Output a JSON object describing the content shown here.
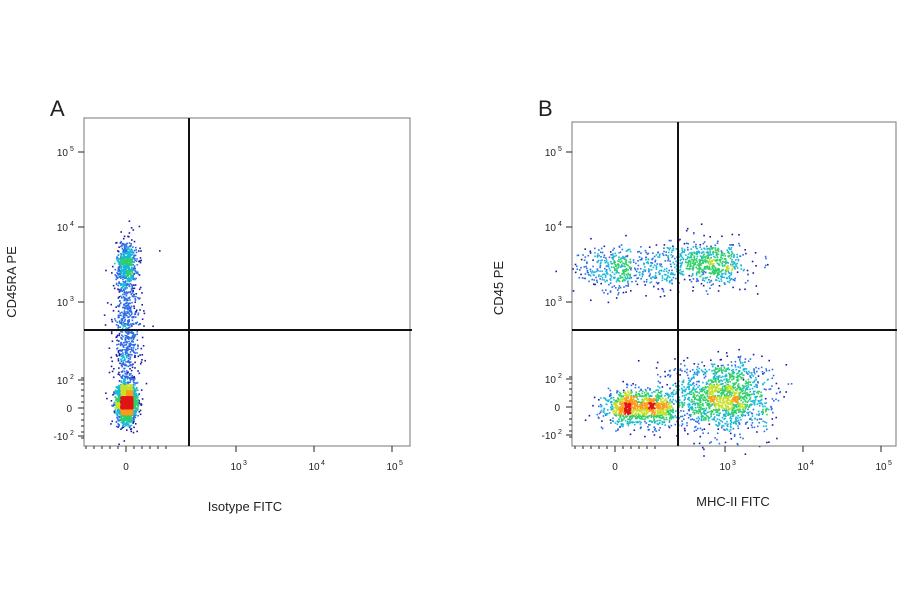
{
  "chart_data": [
    {
      "type": "scatter",
      "panel_label": "A",
      "xlabel": "Isotype FITC",
      "ylabel": "CD45RA PE",
      "x_scale": "biexponential",
      "y_scale": "biexponential",
      "xlim": [
        -150,
        150000
      ],
      "ylim": [
        -150,
        300000
      ],
      "x_ticks": [
        {
          "value": 0,
          "base": "0",
          "exp": ""
        },
        {
          "value": 1000,
          "base": "10",
          "exp": "3"
        },
        {
          "value": 10000,
          "base": "10",
          "exp": "4"
        },
        {
          "value": 100000,
          "base": "10",
          "exp": "5"
        }
      ],
      "y_ticks": [
        {
          "value": -100,
          "base": "-10",
          "exp": "2"
        },
        {
          "value": 0,
          "base": "0",
          "exp": ""
        },
        {
          "value": 100,
          "base": "10",
          "exp": "2"
        },
        {
          "value": 1000,
          "base": "10",
          "exp": "3"
        },
        {
          "value": 10000,
          "base": "10",
          "exp": "4"
        },
        {
          "value": 100000,
          "base": "10",
          "exp": "5"
        }
      ],
      "quadrant_gate": {
        "x": 300,
        "y": 450
      },
      "populations": [
        {
          "name": "negative",
          "center": [
            0,
            20
          ],
          "count": 1800,
          "spread": [
            25,
            35
          ]
        },
        {
          "name": "cd45ra_positive",
          "center": [
            0,
            3200
          ],
          "count": 500,
          "spread": [
            25,
            0.16
          ]
        },
        {
          "name": "bridge",
          "center": [
            0,
            400
          ],
          "count": 700,
          "spread": [
            35,
            0.5
          ]
        }
      ],
      "colormap": [
        "#1a1aa8",
        "#2e6be6",
        "#18b8d8",
        "#2ecf6b",
        "#c8e02a",
        "#ff9a1a",
        "#e01414"
      ]
    },
    {
      "type": "scatter",
      "panel_label": "B",
      "xlabel": "MHC-II FITC",
      "ylabel": "CD45 PE",
      "x_scale": "biexponential",
      "y_scale": "biexponential",
      "xlim": [
        -150,
        150000
      ],
      "ylim": [
        -150,
        300000
      ],
      "x_ticks": [
        {
          "value": 0,
          "base": "0",
          "exp": ""
        },
        {
          "value": 1000,
          "base": "10",
          "exp": "3"
        },
        {
          "value": 10000,
          "base": "10",
          "exp": "4"
        },
        {
          "value": 100000,
          "base": "10",
          "exp": "5"
        }
      ],
      "y_ticks": [
        {
          "value": -100,
          "base": "-10",
          "exp": "2"
        },
        {
          "value": 0,
          "base": "0",
          "exp": ""
        },
        {
          "value": 100,
          "base": "10",
          "exp": "2"
        },
        {
          "value": 1000,
          "base": "10",
          "exp": "3"
        },
        {
          "value": 10000,
          "base": "10",
          "exp": "4"
        },
        {
          "value": 100000,
          "base": "10",
          "exp": "5"
        }
      ],
      "quadrant_gate": {
        "x": 300,
        "y": 450
      },
      "populations": [
        {
          "name": "double_negative",
          "center": [
            100,
            0
          ],
          "count": 1100,
          "spread": [
            70,
            30
          ]
        },
        {
          "name": "mhcii_positive_cd45_negative",
          "center": [
            900,
            40
          ],
          "count": 1500,
          "spread": [
            0.3,
            60
          ]
        },
        {
          "name": "cd45_positive_mhcii_low",
          "center": [
            50,
            2800
          ],
          "count": 500,
          "spread": [
            120,
            0.16
          ]
        },
        {
          "name": "double_positive",
          "center": [
            650,
            3300
          ],
          "count": 600,
          "spread": [
            0.22,
            0.14
          ]
        }
      ],
      "colormap": [
        "#1a1aa8",
        "#2e6be6",
        "#18b8d8",
        "#2ecf6b",
        "#c8e02a",
        "#ff9a1a",
        "#e01414"
      ]
    }
  ]
}
